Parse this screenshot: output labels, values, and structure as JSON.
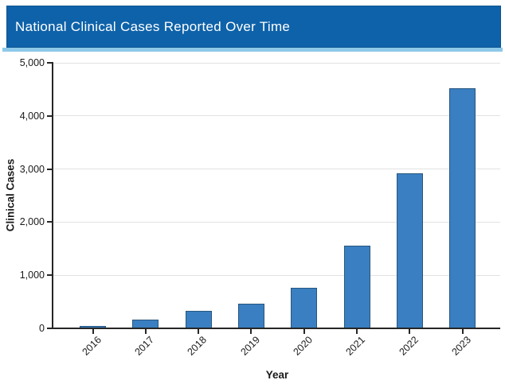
{
  "header": {
    "title": "National Clinical Cases Reported Over Time"
  },
  "colors": {
    "header_bg": "#0e62a9",
    "header_accent": "#8ec9e9",
    "bar_fill": "#3a7fc1",
    "bar_border": "#27567e",
    "gridline": "#e2e2e2",
    "axis_spine": "#262626",
    "text": "#1a1a1a",
    "title_text": "#ffffff"
  },
  "chart_data": {
    "type": "bar",
    "title": "National Clinical Cases Reported Over Time",
    "categories": [
      "2016",
      "2017",
      "2018",
      "2019",
      "2020",
      "2021",
      "2022",
      "2023"
    ],
    "values": [
      50,
      160,
      330,
      470,
      760,
      1550,
      2920,
      4520
    ],
    "xlabel": "Year",
    "ylabel": "Clinical Cases",
    "ylim": [
      0,
      5000
    ],
    "yticks": [
      0,
      1000,
      2000,
      3000,
      4000,
      5000
    ],
    "ytick_labels": [
      "0",
      "1,000",
      "2,000",
      "3,000",
      "4,000",
      "5,000"
    ],
    "grid": true,
    "legend_position": "none",
    "bar_orientation": "vertical",
    "xtick_rotation_deg": 45
  }
}
